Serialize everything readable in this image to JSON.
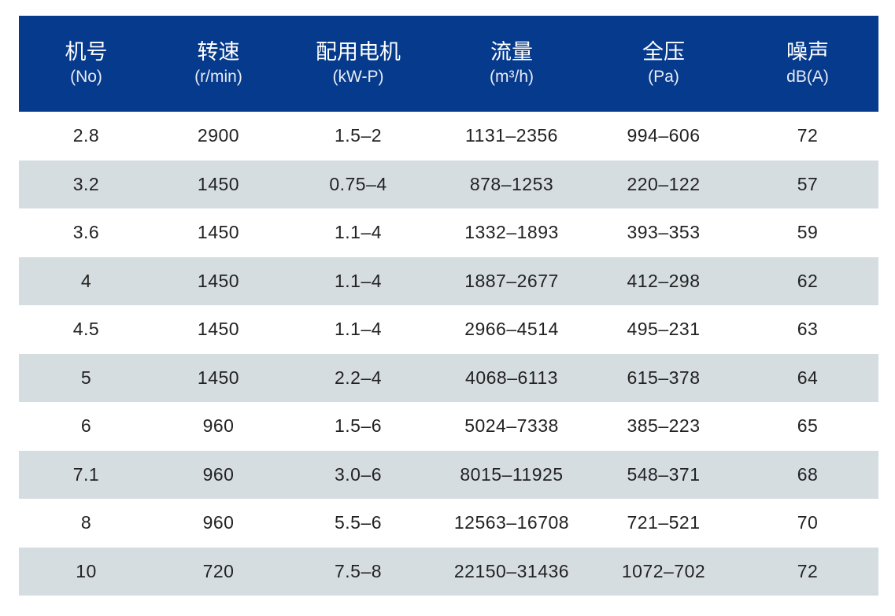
{
  "table": {
    "header_color": "#063a8c",
    "stripe_color": "#d6dde1",
    "columns": [
      {
        "title": "机号",
        "unit": "(No)"
      },
      {
        "title": "转速",
        "unit": "(r/min)"
      },
      {
        "title": "配用电机",
        "unit": "(kW-P)"
      },
      {
        "title": "流量",
        "unit": "(m³/h)"
      },
      {
        "title": "全压",
        "unit": "(Pa)"
      },
      {
        "title": "噪声",
        "unit": "dB(A)"
      }
    ],
    "rows": [
      [
        "2.8",
        "2900",
        "1.5–2",
        "1131–2356",
        "994–606",
        "72"
      ],
      [
        "3.2",
        "1450",
        "0.75–4",
        "878–1253",
        "220–122",
        "57"
      ],
      [
        "3.6",
        "1450",
        "1.1–4",
        "1332–1893",
        "393–353",
        "59"
      ],
      [
        "4",
        "1450",
        "1.1–4",
        "1887–2677",
        "412–298",
        "62"
      ],
      [
        "4.5",
        "1450",
        "1.1–4",
        "2966–4514",
        "495–231",
        "63"
      ],
      [
        "5",
        "1450",
        "2.2–4",
        "4068–6113",
        "615–378",
        "64"
      ],
      [
        "6",
        "960",
        "1.5–6",
        "5024–7338",
        "385–223",
        "65"
      ],
      [
        "7.1",
        "960",
        "3.0–6",
        "8015–11925",
        "548–371",
        "68"
      ],
      [
        "8",
        "960",
        "5.5–6",
        "12563–16708",
        "721–521",
        "70"
      ],
      [
        "10",
        "720",
        "7.5–8",
        "22150–31436",
        "1072–702",
        "72"
      ]
    ]
  }
}
